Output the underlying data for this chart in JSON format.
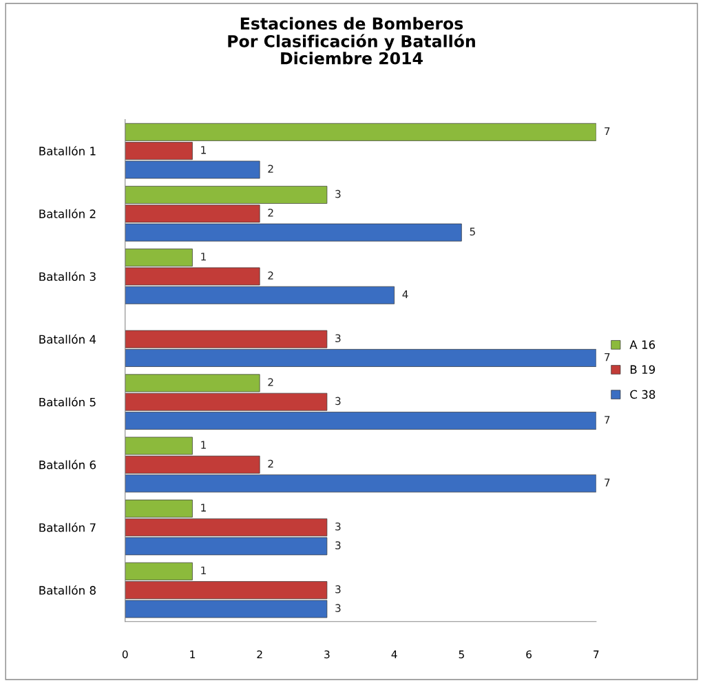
{
  "chart_data": {
    "type": "bar",
    "orientation": "horizontal",
    "title": "Estaciones de Bomberos\nPor Clasificación y Batallón\nDiciembre 2014",
    "categories": [
      "Batallón 1",
      "Batallón 2",
      "Batallón 3",
      "Batallón 4",
      "Batallón 5",
      "Batallón 6",
      "Batallón 7",
      "Batallón 8"
    ],
    "series": [
      {
        "name": "A 16",
        "color": "#8cba3c",
        "values": [
          7,
          3,
          1,
          null,
          2,
          1,
          1,
          1
        ]
      },
      {
        "name": "B 19",
        "color": "#c23c38",
        "values": [
          1,
          2,
          2,
          3,
          3,
          2,
          3,
          3
        ]
      },
      {
        "name": "C 38",
        "color": "#3a6ec2",
        "values": [
          2,
          5,
          4,
          7,
          7,
          7,
          3,
          3
        ]
      }
    ],
    "xlim": [
      0,
      7
    ],
    "xticks": [
      0,
      1,
      2,
      3,
      4,
      5,
      6,
      7
    ],
    "data_labels": true,
    "grid": false,
    "legend": "right"
  }
}
